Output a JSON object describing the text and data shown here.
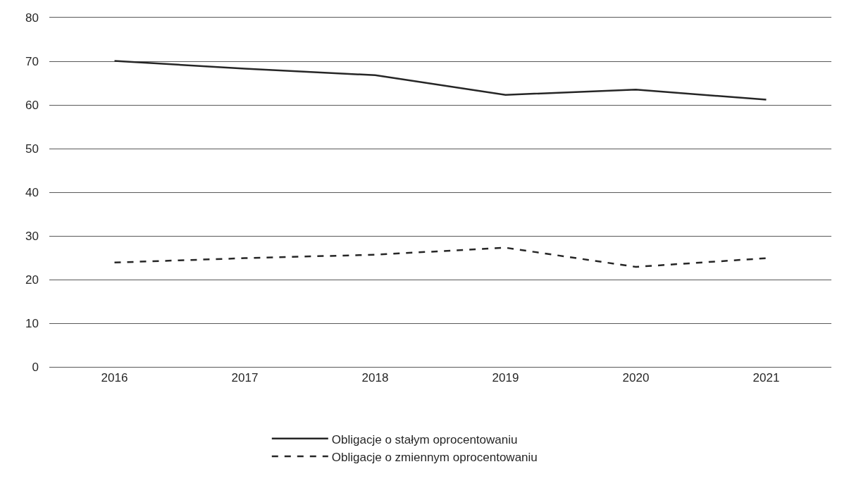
{
  "chart_data": {
    "type": "line",
    "categories": [
      "2016",
      "2017",
      "2018",
      "2019",
      "2020",
      "2021"
    ],
    "series": [
      {
        "name": "Obligacje o stałym oprocentowaniu",
        "color": "#262626",
        "values": [
          70.1,
          68.3,
          66.8,
          62.3,
          63.5,
          61.2
        ],
        "line_style": "solid"
      },
      {
        "name": "Obligacje o zmiennym oprocentowaniu",
        "color": "#262626",
        "values": [
          23.9,
          24.9,
          25.7,
          27.3,
          22.9,
          24.9
        ],
        "line_style": "dashed"
      }
    ],
    "ylim": [
      0,
      80
    ],
    "yticks": [
      0,
      10,
      20,
      30,
      40,
      50,
      60,
      70,
      80
    ],
    "grid": "y",
    "legend": "bottom",
    "marker": "none"
  }
}
